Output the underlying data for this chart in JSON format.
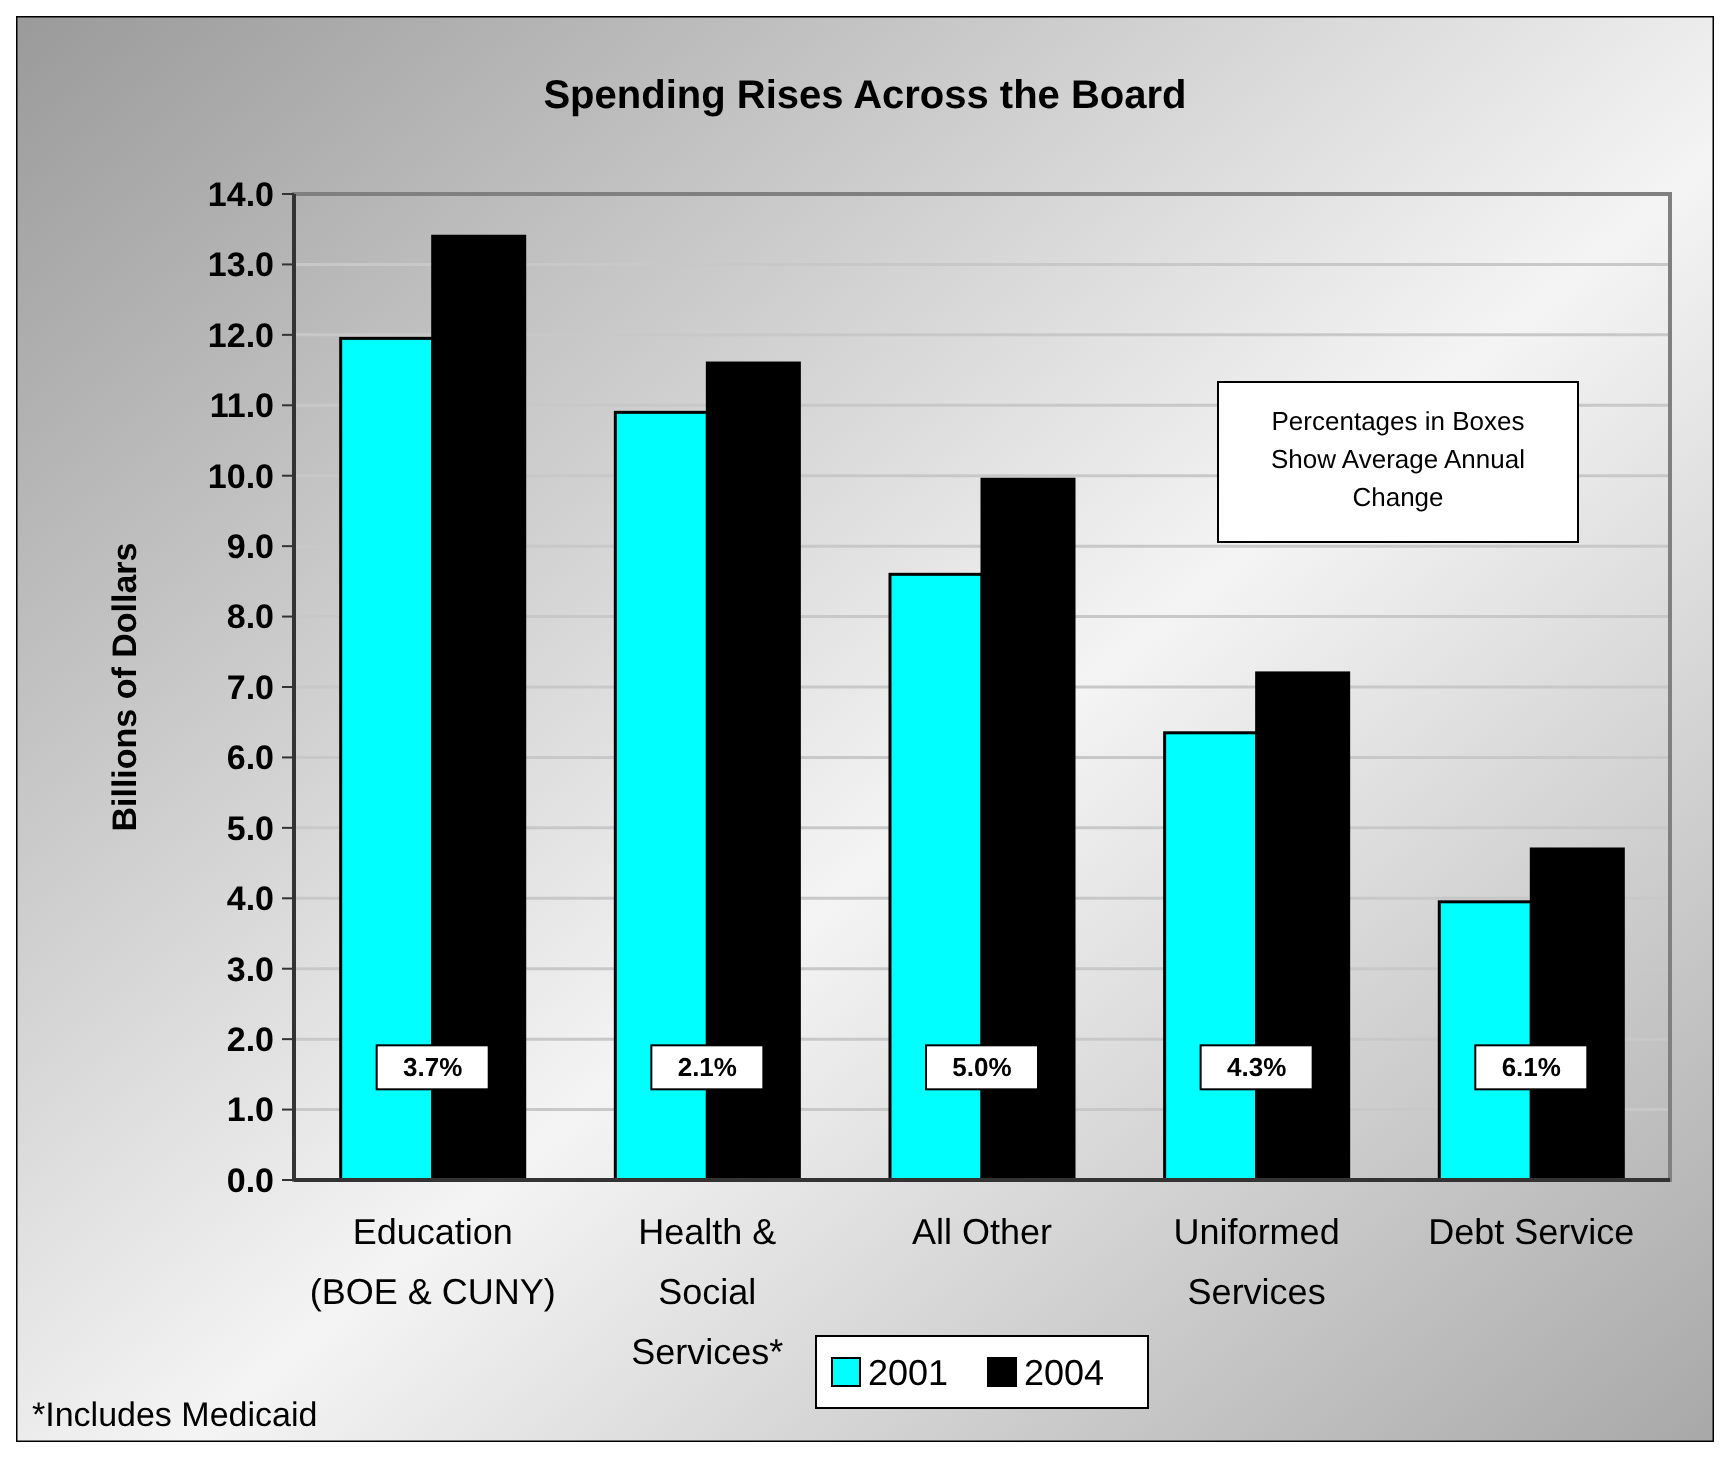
{
  "chart_data": {
    "type": "bar",
    "title": "Spending Rises Across the Board",
    "ylabel": "Billions of Dollars",
    "categories": [
      "Education (BOE & CUNY)",
      "Health & Social Services*",
      "All Other",
      "Uniformed Services",
      "Debt Service"
    ],
    "series": [
      {
        "name": "2001",
        "color": "#00ffff",
        "values": [
          11.95,
          10.9,
          8.6,
          6.35,
          3.95
        ]
      },
      {
        "name": "2004",
        "color": "#000000",
        "values": [
          13.4,
          11.6,
          9.95,
          7.2,
          4.7
        ]
      }
    ],
    "ylim": [
      0,
      14
    ],
    "yticks": [
      {
        "value": 0,
        "label": "0.0"
      },
      {
        "value": 1,
        "label": "1.0"
      },
      {
        "value": 2,
        "label": "2.0"
      },
      {
        "value": 3,
        "label": "3.0"
      },
      {
        "value": 4,
        "label": "4.0"
      },
      {
        "value": 5,
        "label": "5.0"
      },
      {
        "value": 6,
        "label": "6.0"
      },
      {
        "value": 7,
        "label": "7.0"
      },
      {
        "value": 8,
        "label": "8.0"
      },
      {
        "value": 9,
        "label": "9.0"
      },
      {
        "value": 10,
        "label": "10.0"
      },
      {
        "value": 11,
        "label": "11.0"
      },
      {
        "value": 12,
        "label": "12.0"
      },
      {
        "value": 13,
        "label": "13.0"
      },
      {
        "value": 14,
        "label": "14.0"
      }
    ],
    "grid": "y",
    "legend": "bottom",
    "annotations": [
      {
        "text": "3.7%",
        "x": "Education (BOE & CUNY)",
        "y": 1.6
      },
      {
        "text": "2.1%",
        "x": "Health & Social Services*",
        "y": 1.6
      },
      {
        "text": "5.0%",
        "x": "All Other",
        "y": 1.6
      },
      {
        "text": "4.3%",
        "x": "Uniformed Services",
        "y": 1.6
      },
      {
        "text": "6.1%",
        "x": "Debt Service",
        "y": 1.6
      },
      "Percentages in Boxes Show Average Annual Change",
      "*Includes Medicaid"
    ]
  }
}
